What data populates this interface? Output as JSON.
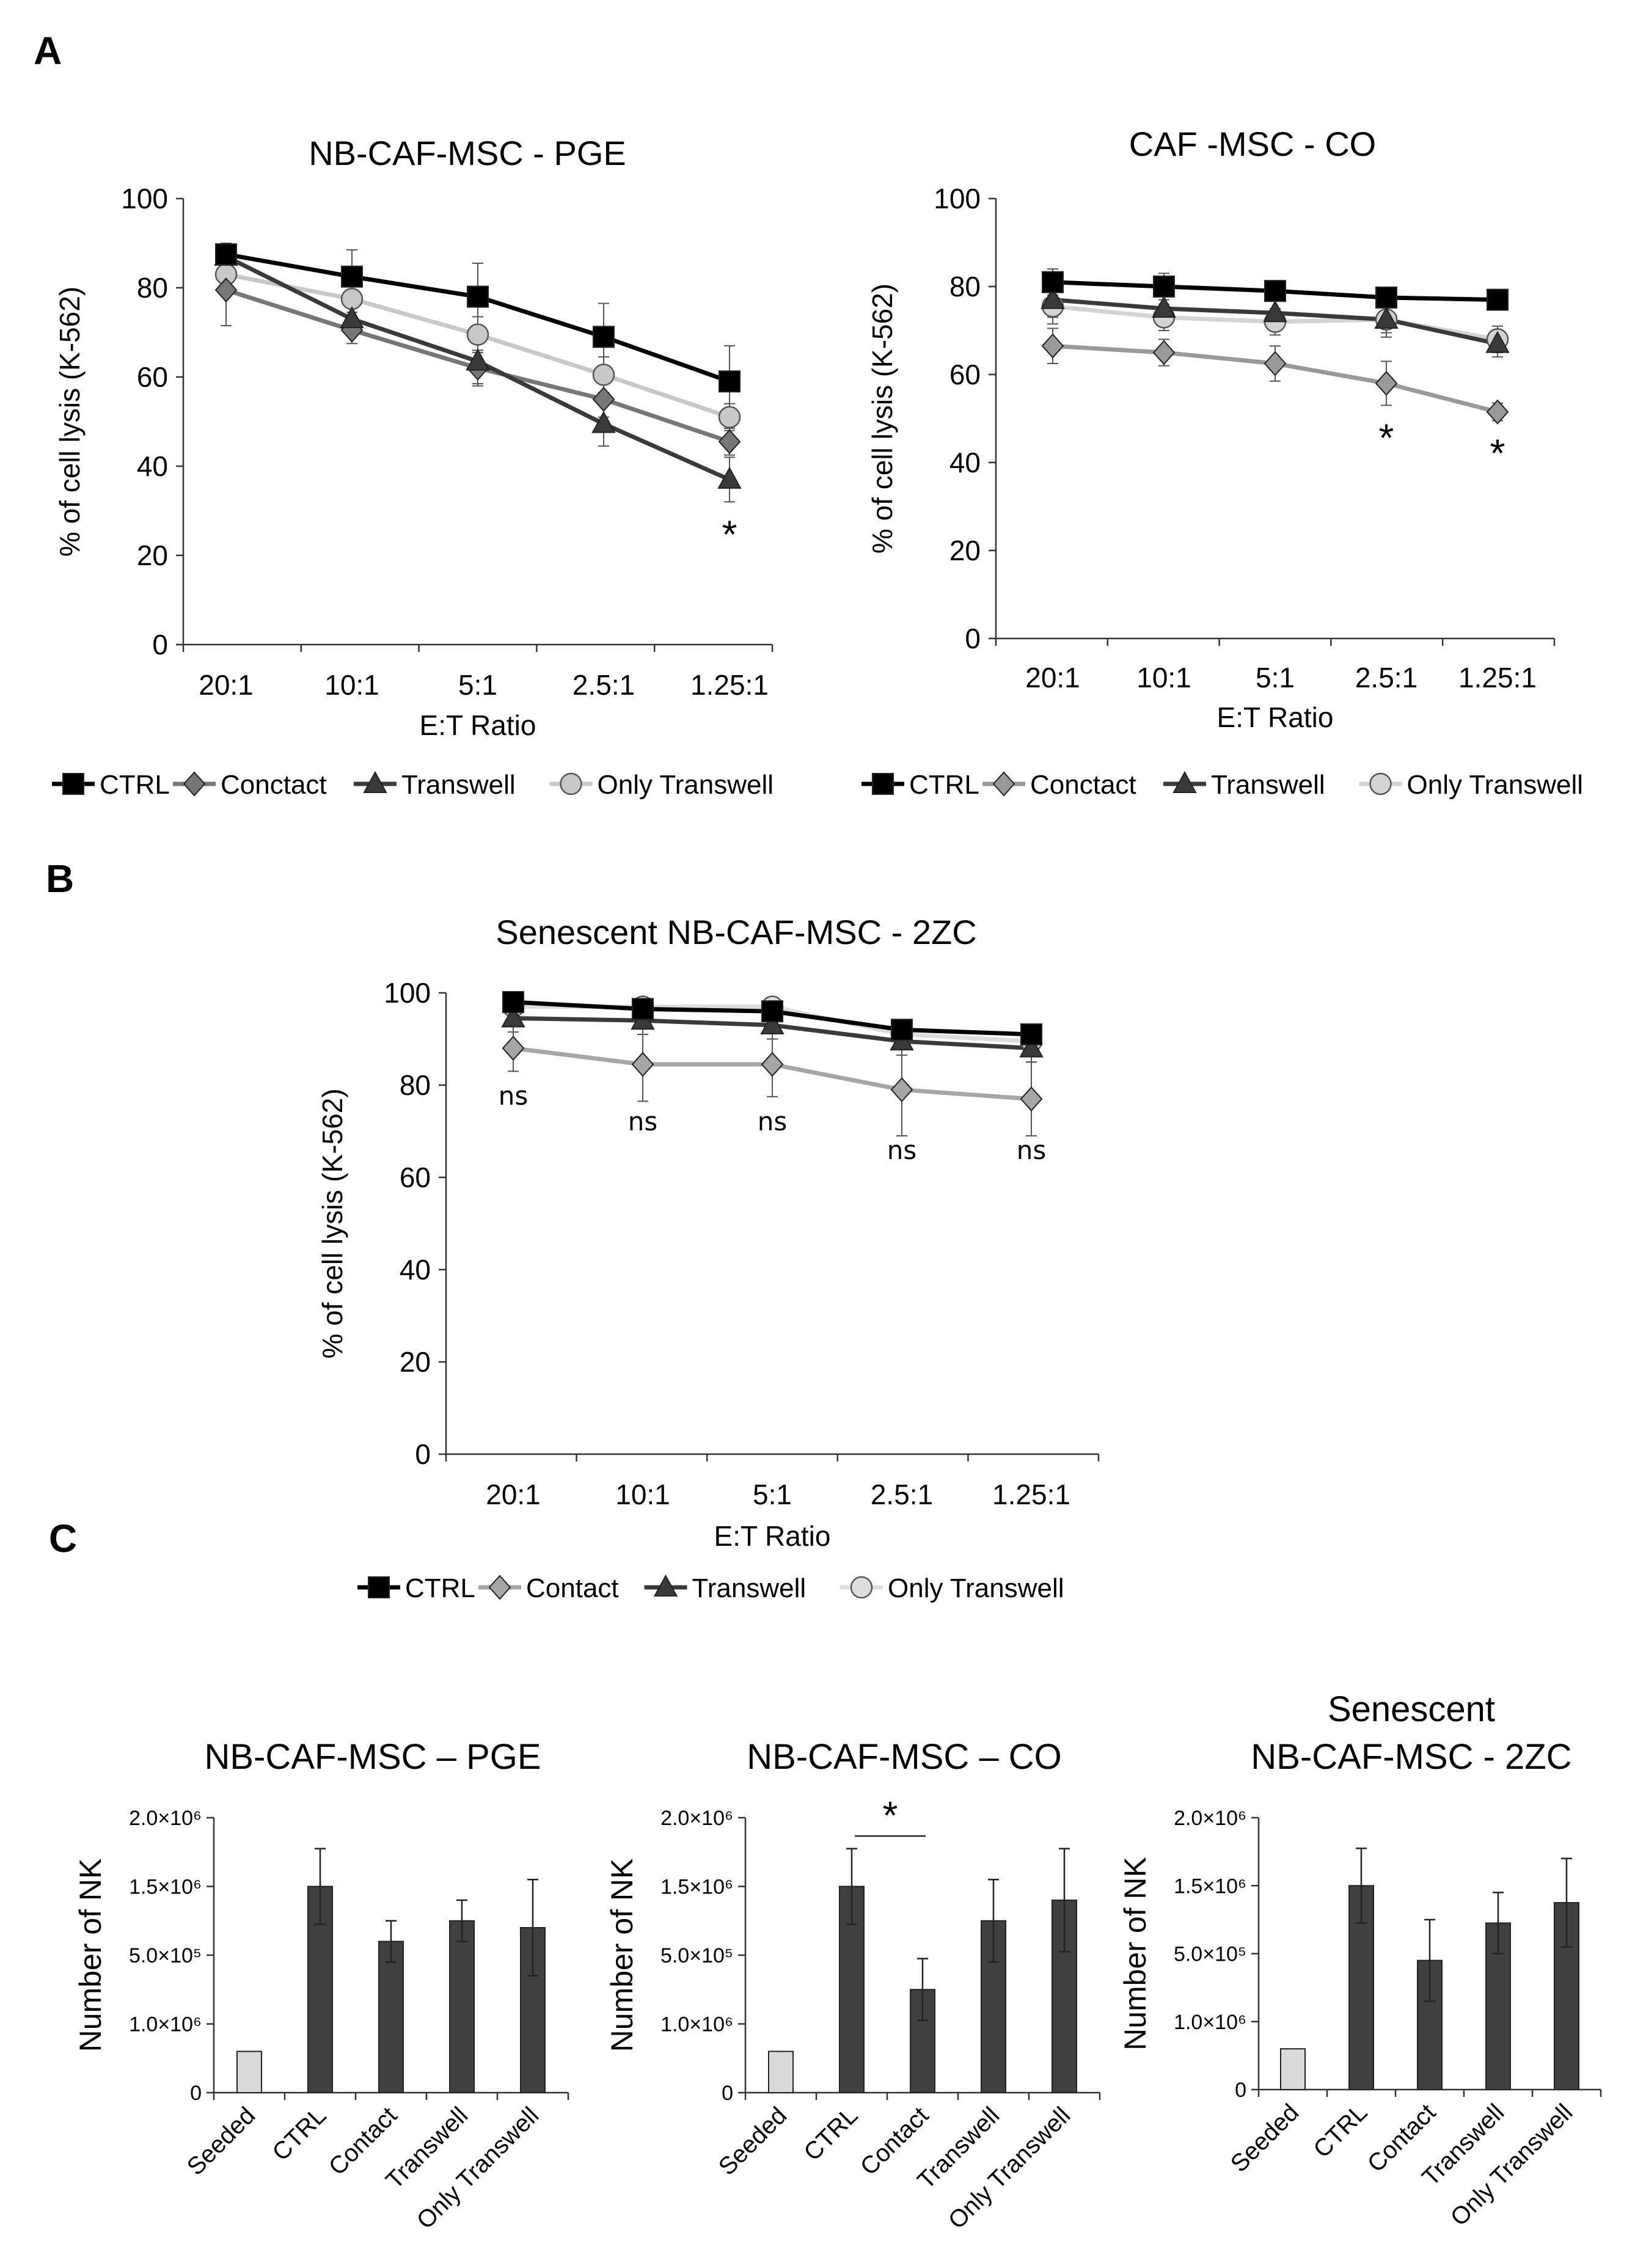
{
  "panels": {
    "A": "A",
    "B": "B",
    "C": "C"
  },
  "chart_data": [
    {
      "id": "A1",
      "type": "line",
      "title": "NB-CAF-MSC - PGE",
      "xlabel": "E:T Ratio",
      "ylabel": "% of cell lysis (K-562)",
      "categories": [
        "20:1",
        "10:1",
        "5:1",
        "2.5:1",
        "1.25:1"
      ],
      "ylim": [
        0,
        100
      ],
      "yticks": [
        "0",
        "20",
        "40",
        "60",
        "80",
        "100"
      ],
      "series": [
        {
          "name": "CTRL",
          "values": [
            87.5,
            82.5,
            78,
            69,
            59
          ],
          "err": [
            2,
            6,
            7.5,
            7.5,
            8
          ],
          "color": "#000000",
          "marker": "square"
        },
        {
          "name": "Conctact",
          "values": [
            79.5,
            70.5,
            62,
            55,
            45.5
          ],
          "err": [
            8,
            3,
            4,
            4,
            3
          ],
          "color": "#777777",
          "marker": "diamond"
        },
        {
          "name": "Transwell",
          "values": [
            87,
            73,
            63.5,
            49.5,
            37
          ],
          "err": [
            3,
            3,
            5,
            5,
            5
          ],
          "color": "#3a3a3a",
          "marker": "triangle"
        },
        {
          "name": "Only Transwell",
          "values": [
            83,
            77.5,
            69.5,
            60.5,
            51
          ],
          "err": [
            2,
            3,
            4,
            4,
            3
          ],
          "color": "#c8c8c8",
          "marker": "circle"
        }
      ],
      "annotations": [
        {
          "category": "1.25:1",
          "text": "*"
        }
      ]
    },
    {
      "id": "A2",
      "type": "line",
      "title": "CAF -MSC - CO",
      "xlabel": "E:T Ratio",
      "ylabel": "% of cell lysis (K-562)",
      "categories": [
        "20:1",
        "10:1",
        "5:1",
        "2.5:1",
        "1.25:1"
      ],
      "ylim": [
        0,
        100
      ],
      "yticks": [
        "0",
        "20",
        "40",
        "60",
        "80",
        "100"
      ],
      "series": [
        {
          "name": "CTRL",
          "values": [
            81,
            80,
            79,
            77.5,
            77
          ],
          "err": [
            3,
            3,
            2,
            2,
            2
          ],
          "color": "#000000",
          "marker": "square"
        },
        {
          "name": "Conctact",
          "values": [
            66.5,
            65,
            62.5,
            58,
            51.5
          ],
          "err": [
            4,
            3,
            4,
            5,
            2
          ],
          "color": "#999999",
          "marker": "diamond"
        },
        {
          "name": "Transwell",
          "values": [
            77,
            75,
            74,
            72.5,
            67
          ],
          "err": [
            4,
            3,
            3,
            4,
            3
          ],
          "color": "#3a3a3a",
          "marker": "triangle"
        },
        {
          "name": "Only Transwell",
          "values": [
            75.5,
            73,
            72,
            72.5,
            68
          ],
          "err": [
            4,
            3,
            3,
            3,
            3
          ],
          "color": "#d3d3d3",
          "marker": "circle"
        }
      ],
      "annotations": [
        {
          "category": "2.5:1",
          "text": "*"
        },
        {
          "category": "1.25:1",
          "text": "*"
        }
      ]
    },
    {
      "id": "B",
      "type": "line",
      "title": "Senescent NB-CAF-MSC - 2ZC",
      "xlabel": "E:T Ratio",
      "ylabel": "% of cell lysis (K-562)",
      "categories": [
        "20:1",
        "10:1",
        "5:1",
        "2.5:1",
        "1.25:1"
      ],
      "ylim": [
        0,
        100
      ],
      "yticks": [
        "0",
        "20",
        "40",
        "60",
        "80",
        "100"
      ],
      "series": [
        {
          "name": "CTRL",
          "values": [
            98,
            96.5,
            96,
            92,
            91
          ],
          "err": [
            2,
            2,
            2,
            2,
            2
          ],
          "color": "#000000",
          "marker": "square"
        },
        {
          "name": "Contact",
          "values": [
            88,
            84.5,
            84.5,
            79,
            77
          ],
          "err": [
            5,
            8,
            7,
            10,
            8
          ],
          "color": "#a6a6a6",
          "marker": "diamond"
        },
        {
          "name": "Transwell",
          "values": [
            94.5,
            94,
            93,
            89.5,
            88
          ],
          "err": [
            3,
            3,
            3,
            3,
            3
          ],
          "color": "#3a3a3a",
          "marker": "triangle"
        },
        {
          "name": "Only Transwell",
          "values": [
            97,
            97,
            97,
            91,
            89.5
          ],
          "err": [
            2,
            2,
            2,
            2,
            2
          ],
          "color": "#dddddd",
          "marker": "circle"
        }
      ],
      "annotations": [
        {
          "category": "20:1",
          "text": "ns"
        },
        {
          "category": "10:1",
          "text": "ns"
        },
        {
          "category": "5:1",
          "text": "ns"
        },
        {
          "category": "2.5:1",
          "text": "ns"
        },
        {
          "category": "1.25:1",
          "text": "ns"
        }
      ]
    },
    {
      "id": "C1",
      "type": "bar",
      "title": "NB-CAF-MSC – PGE",
      "ylabel": "Number of NK",
      "categories": [
        "Seeded",
        "CTRL",
        "Contact",
        "Transwell",
        "Only Transwell"
      ],
      "values": [
        0.6,
        3.0,
        2.2,
        2.5,
        2.4
      ],
      "err": [
        0,
        0.55,
        0.3,
        0.3,
        0.7
      ],
      "colors": [
        "#d9d9d9",
        "#404040",
        "#404040",
        "#404040",
        "#404040"
      ],
      "ylim": [
        0,
        4
      ],
      "yticks": [
        "0",
        "1.0×10⁶",
        "5.0×10⁵",
        "1.5×10⁶",
        "2.0×10⁶"
      ]
    },
    {
      "id": "C2",
      "type": "bar",
      "title": "NB-CAF-MSC – CO",
      "ylabel": "Number of NK",
      "categories": [
        "Seeded",
        "CTRL",
        "Contact",
        "Transwell",
        "Only Transwell"
      ],
      "values": [
        0.6,
        3.0,
        1.5,
        2.5,
        2.8
      ],
      "err": [
        0,
        0.55,
        0.45,
        0.6,
        0.75
      ],
      "colors": [
        "#d9d9d9",
        "#404040",
        "#404040",
        "#404040",
        "#404040"
      ],
      "ylim": [
        0,
        4
      ],
      "yticks": [
        "0",
        "1.0×10⁶",
        "5.0×10⁵",
        "1.5×10⁶",
        "2.0×10⁶"
      ],
      "significance": {
        "from": "CTRL",
        "to": "Contact",
        "text": "*"
      }
    },
    {
      "id": "C3",
      "type": "bar",
      "title_lines": [
        "Senescent",
        "NB-CAF-MSC - 2ZC"
      ],
      "ylabel": "Number of NK",
      "categories": [
        "Seeded",
        "CTRL",
        "Contact",
        "Transwell",
        "Only Transwell"
      ],
      "values": [
        0.6,
        3.0,
        1.9,
        2.45,
        2.75
      ],
      "err": [
        0,
        0.55,
        0.6,
        0.45,
        0.65
      ],
      "colors": [
        "#d9d9d9",
        "#404040",
        "#404040",
        "#404040",
        "#404040"
      ],
      "ylim": [
        0,
        4
      ],
      "yticks": [
        "0",
        "1.0×10⁶",
        "5.0×10⁵",
        "1.5×10⁶",
        "2.0×10⁶"
      ]
    }
  ]
}
